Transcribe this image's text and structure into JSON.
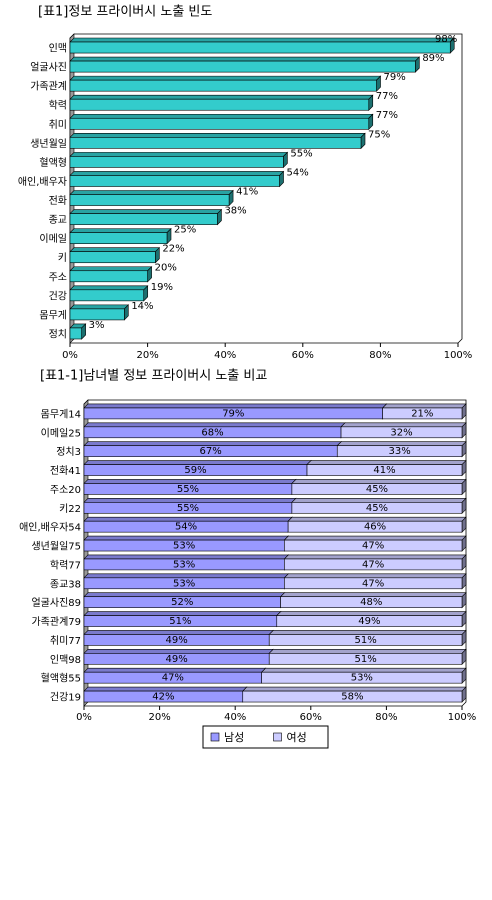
{
  "chart_data": [
    {
      "type": "bar",
      "title": "[표1]정보 프라이버시 노출 빈도",
      "categories": [
        "인맥",
        "얼굴사진",
        "가족관계",
        "학력",
        "취미",
        "생년월일",
        "혈액형",
        "애인,배우자",
        "전화",
        "종교",
        "이메일",
        "키",
        "주소",
        "건강",
        "몸무게",
        "정치"
      ],
      "values": [
        98,
        89,
        79,
        77,
        77,
        75,
        55,
        54,
        41,
        38,
        25,
        22,
        20,
        19,
        14,
        3
      ],
      "value_labels": [
        "98%",
        "89%",
        "79%",
        "77%",
        "77%",
        "75%",
        "55%",
        "54%",
        "41%",
        "38%",
        "25%",
        "22%",
        "20%",
        "19%",
        "14%",
        "3%"
      ],
      "color": "#33cccc",
      "xlim": [
        0,
        100
      ],
      "xticks": [
        {
          "value": 0,
          "label": "0%"
        },
        {
          "value": 20,
          "label": "20%"
        },
        {
          "value": 40,
          "label": "40%"
        },
        {
          "value": 60,
          "label": "60%"
        },
        {
          "value": 80,
          "label": "80%"
        },
        {
          "value": 100,
          "label": "100%"
        }
      ]
    },
    {
      "type": "bar",
      "stacked": true,
      "title": "[표1-1]남녀별 정보 프라이버시 노출 비교",
      "categories": [
        "몸무게14",
        "이메일25",
        "정치3",
        "전화41",
        "주소20",
        "키22",
        "애인,배우자54",
        "생년월일75",
        "학력77",
        "종교38",
        "얼굴사진89",
        "가족관계79",
        "취미77",
        "인맥98",
        "혈액형55",
        "건강19"
      ],
      "series": [
        {
          "name": "남성",
          "color": "#9999ff",
          "values": [
            79,
            68,
            67,
            59,
            55,
            55,
            54,
            53,
            53,
            53,
            52,
            51,
            49,
            49,
            47,
            42
          ],
          "value_labels": [
            "79%",
            "68%",
            "67%",
            "59%",
            "55%",
            "55%",
            "54%",
            "53%",
            "53%",
            "53%",
            "52%",
            "51%",
            "49%",
            "49%",
            "47%",
            "42%"
          ]
        },
        {
          "name": "여성",
          "color": "#ccccff",
          "values": [
            21,
            32,
            33,
            41,
            45,
            45,
            46,
            47,
            47,
            47,
            48,
            49,
            51,
            51,
            53,
            58
          ],
          "value_labels": [
            "21%",
            "32%",
            "33%",
            "41%",
            "45%",
            "45%",
            "46%",
            "47%",
            "47%",
            "47%",
            "48%",
            "49%",
            "51%",
            "51%",
            "53%",
            "58%"
          ]
        }
      ],
      "xlim": [
        0,
        100
      ],
      "xticks": [
        {
          "value": 0,
          "label": "0%"
        },
        {
          "value": 20,
          "label": "20%"
        },
        {
          "value": 40,
          "label": "40%"
        },
        {
          "value": 60,
          "label": "60%"
        },
        {
          "value": 80,
          "label": "80%"
        },
        {
          "value": 100,
          "label": "100%"
        }
      ]
    }
  ]
}
